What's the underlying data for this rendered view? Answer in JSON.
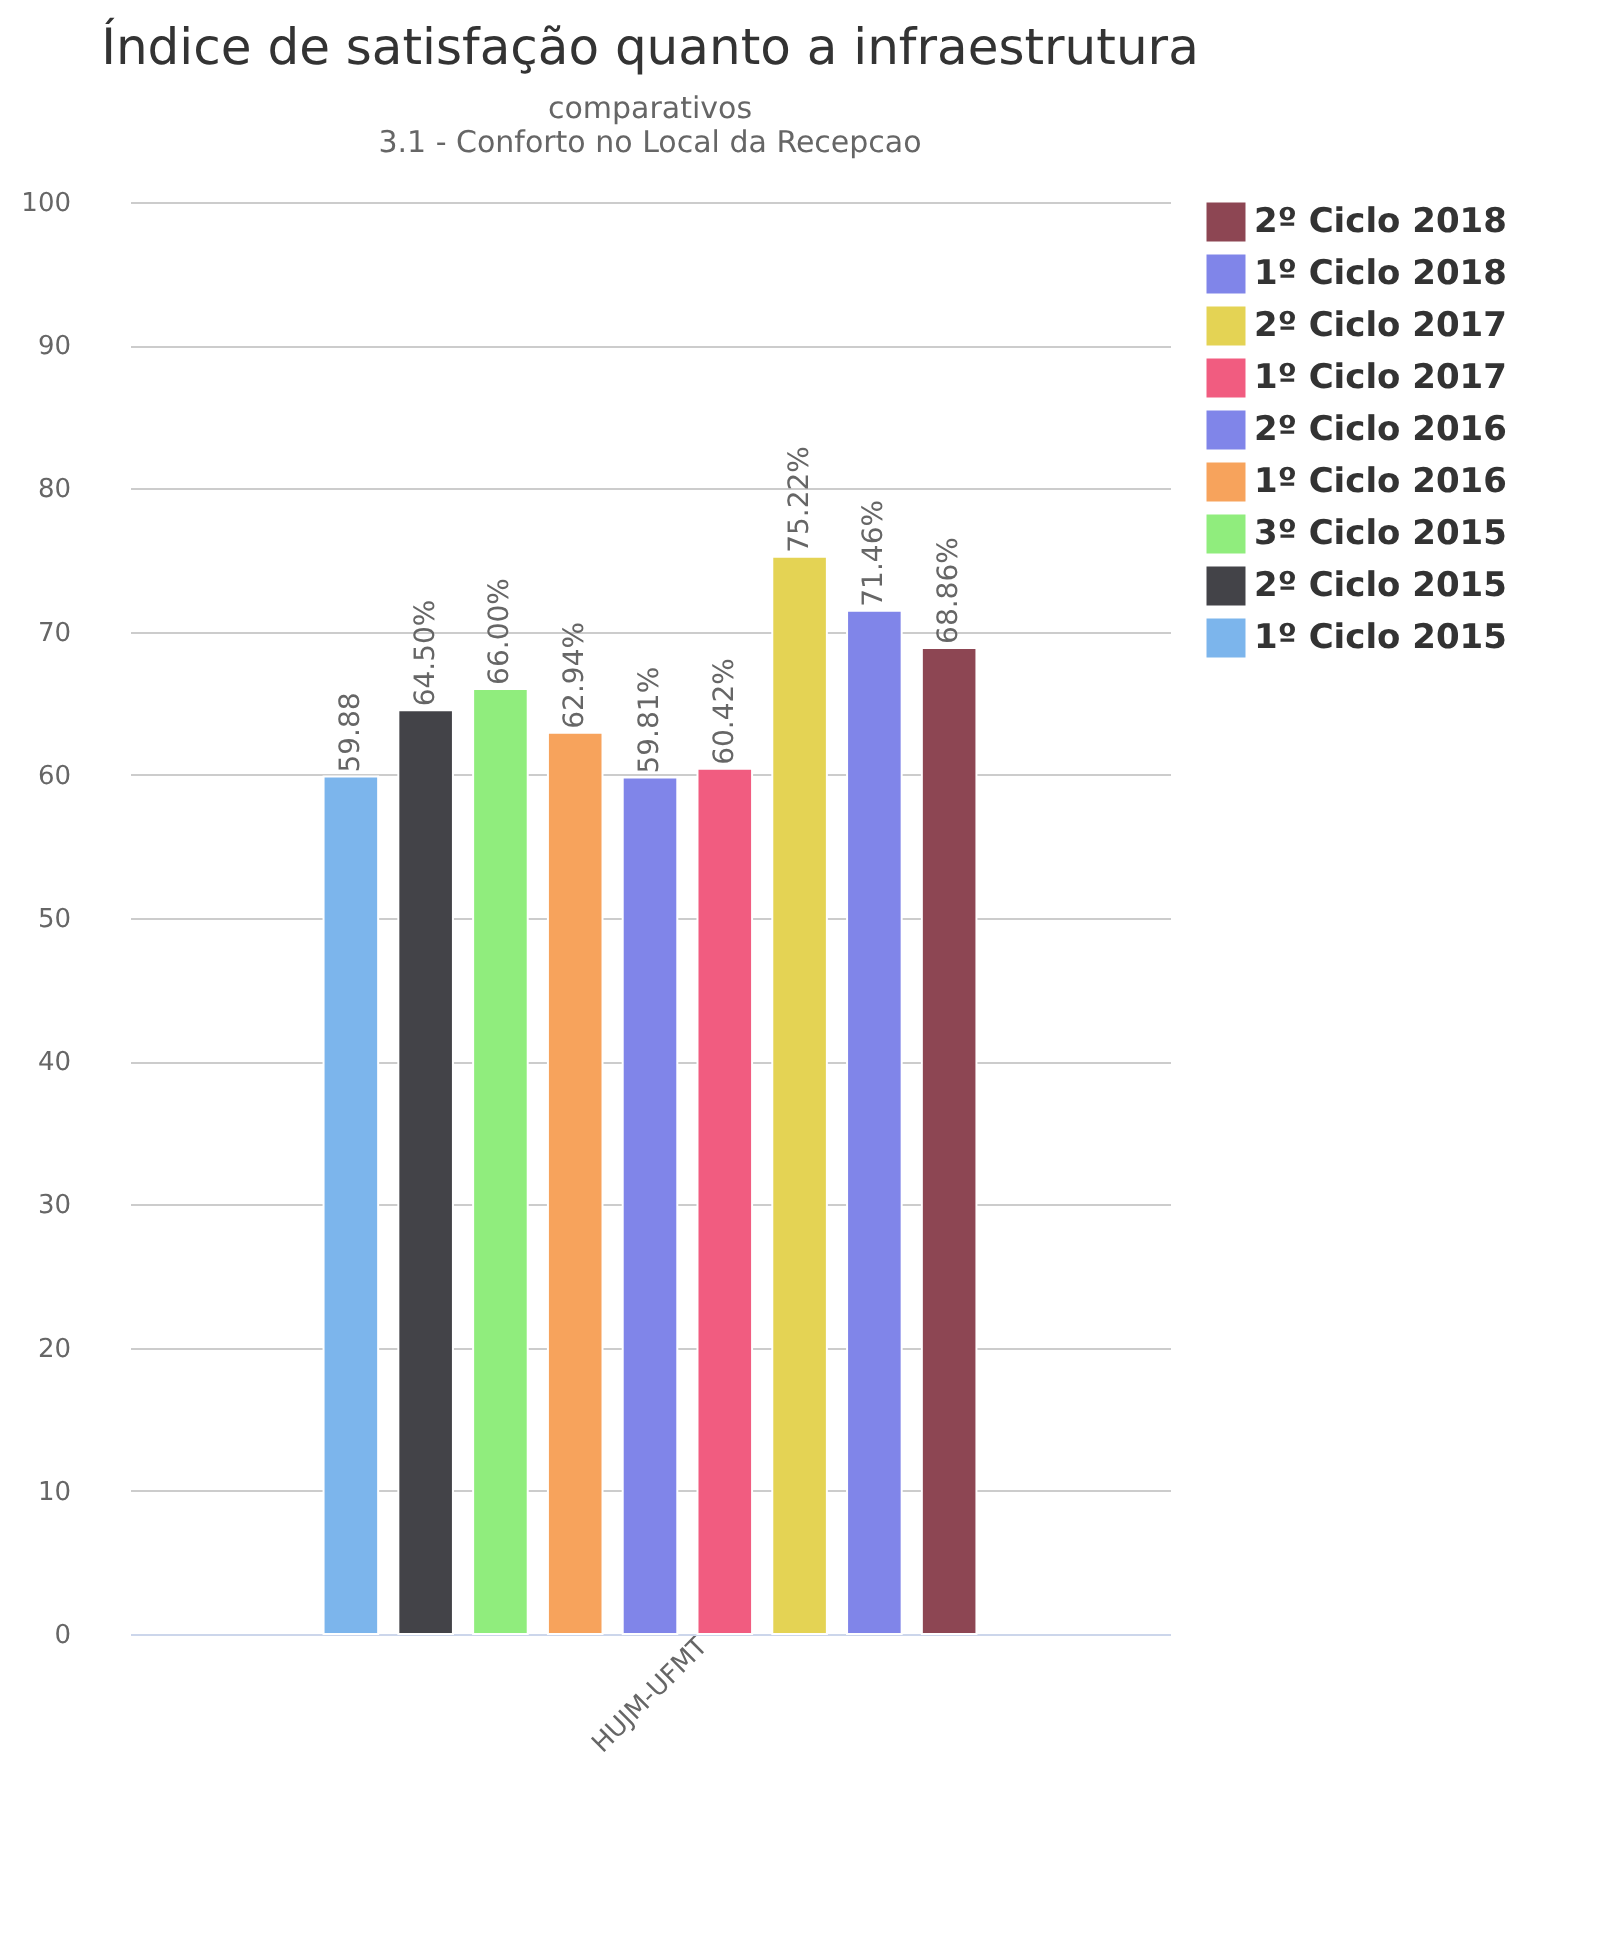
{
  "chart_data": {
    "type": "bar",
    "title": "Índice de satisfação quanto a infraestrutura",
    "subtitle": "comparativos\n3.1 - Conforto no Local da Recepcao",
    "categories": [
      "HUJM-UFMT"
    ],
    "series": [
      {
        "name": "1º Ciclo 2015",
        "color": "#7cb5ec",
        "values": [
          59.88
        ],
        "value_labels": [
          "59.88"
        ]
      },
      {
        "name": "2º Ciclo 2015",
        "color": "#434348",
        "values": [
          64.5
        ],
        "value_labels": [
          "64.50%"
        ]
      },
      {
        "name": "3º Ciclo 2015",
        "color": "#90ed7d",
        "values": [
          66.0
        ],
        "value_labels": [
          "66.00%"
        ]
      },
      {
        "name": "1º Ciclo 2016",
        "color": "#f7a35c",
        "values": [
          62.94
        ],
        "value_labels": [
          "62.94%"
        ]
      },
      {
        "name": "2º Ciclo 2016",
        "color": "#8085e9",
        "values": [
          59.81
        ],
        "value_labels": [
          "59.81%"
        ]
      },
      {
        "name": "1º Ciclo 2017",
        "color": "#f15c80",
        "values": [
          60.42
        ],
        "value_labels": [
          "60.42%"
        ]
      },
      {
        "name": "2º Ciclo 2017",
        "color": "#e4d354",
        "values": [
          75.22
        ],
        "value_labels": [
          "75.22%"
        ]
      },
      {
        "name": "1º Ciclo 2018",
        "color": "#8085e9",
        "values": [
          71.46
        ],
        "value_labels": [
          "71.46%"
        ]
      },
      {
        "name": "2º Ciclo 2018",
        "color": "#8d4653",
        "values": [
          68.86
        ],
        "value_labels": [
          "68.86%"
        ]
      }
    ],
    "ylim": [
      0,
      100
    ],
    "yticks": [
      0,
      10,
      20,
      30,
      40,
      50,
      60,
      70,
      80,
      90,
      100
    ],
    "grid": "y",
    "legend": "right"
  }
}
